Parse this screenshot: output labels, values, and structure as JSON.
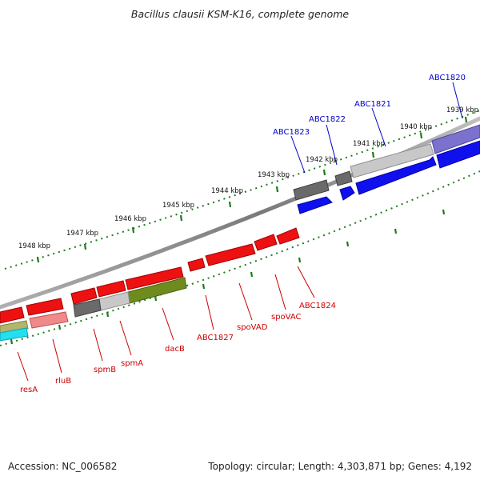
{
  "title": "Bacillus clausii KSM-K16, complete genome",
  "footer": {
    "accession": "Accession: NC_006582",
    "summary": "Topology: circular; Length: 4,303,871 bp; Genes: 4,192"
  },
  "colors": {
    "backbone": "#8a8a8a",
    "scale_ticks": "#1f7a1f",
    "forward_label": "#0000cc",
    "reverse_label": "#cc0000",
    "blue_gene": "#1010ee",
    "red_gene": "#ee1111",
    "gray_gene": "#6a6a6a",
    "light_gray_gene": "#c8c8c8",
    "olive_gene": "#6e8c1e",
    "purple_gene": "#7a72cc",
    "pink_gene": "#f08a8a",
    "cyan_gene": "#22e0f0",
    "khaki_gene": "#b4b46a"
  },
  "scale_labels": [
    "1939 kbp",
    "1940 kbp",
    "1941 kbp",
    "1942 kbp",
    "1943 kbp",
    "1944 kbp",
    "1945 kbp",
    "1946 kbp",
    "1947 kbp",
    "1948 kbp"
  ],
  "forward_gene_labels": [
    "ABC1820",
    "ABC1821",
    "ABC1822",
    "ABC1823"
  ],
  "reverse_gene_labels": [
    "ABC1824",
    "spoVAC",
    "spoVAD",
    "ABC1827",
    "dacB",
    "spmA",
    "spmB",
    "rluB",
    "resA"
  ]
}
